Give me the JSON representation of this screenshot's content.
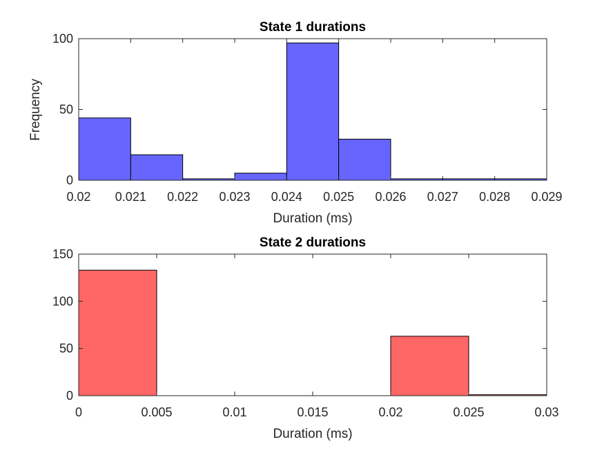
{
  "colors": {
    "state1_bars": "#6666ff",
    "state2_bars": "#ff6666",
    "axis": "#262626",
    "background": "#ffffff"
  },
  "chart_data": [
    {
      "type": "bar",
      "title": "State 1 durations",
      "xlabel": "Duration (ms)",
      "ylabel": "Frequency",
      "xlim": [
        0.02,
        0.029
      ],
      "ylim": [
        0,
        100
      ],
      "xticks": [
        "0.02",
        "0.021",
        "0.022",
        "0.023",
        "0.024",
        "0.025",
        "0.026",
        "0.027",
        "0.028",
        "0.029"
      ],
      "yticks": [
        "0",
        "50",
        "100"
      ],
      "bin_edges": [
        0.02,
        0.021,
        0.022,
        0.023,
        0.024,
        0.025,
        0.026,
        0.027,
        0.028,
        0.029
      ],
      "values": [
        44,
        18,
        1,
        5,
        97,
        29,
        1,
        1,
        1
      ],
      "grid": false,
      "color": "#6666ff"
    },
    {
      "type": "bar",
      "title": "State 2 durations",
      "xlabel": "Duration (ms)",
      "ylabel": "",
      "xlim": [
        0,
        0.03
      ],
      "ylim": [
        0,
        150
      ],
      "xticks": [
        "0",
        "0.005",
        "0.01",
        "0.015",
        "0.02",
        "0.025",
        "0.03"
      ],
      "yticks": [
        "0",
        "50",
        "100",
        "150"
      ],
      "bin_edges": [
        0,
        0.005,
        0.01,
        0.015,
        0.02,
        0.025,
        0.03
      ],
      "values": [
        133,
        0,
        0,
        0,
        63,
        1
      ],
      "grid": false,
      "color": "#ff6666"
    }
  ]
}
